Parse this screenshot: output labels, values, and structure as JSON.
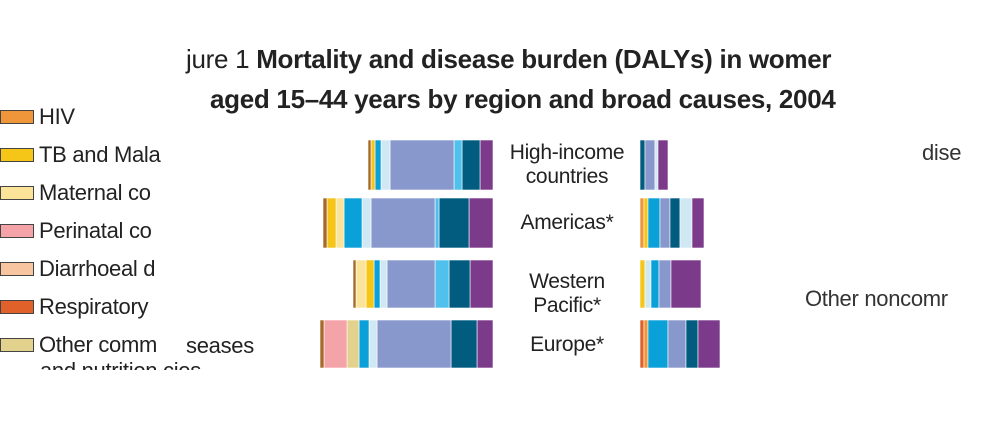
{
  "figure": {
    "title_prefix": "jure 1",
    "title_line1": "Mortality and disease burden (DALYs) in womer",
    "title_line2": "aged 15–44 years by region and broad causes, 2004"
  },
  "legend": [
    {
      "label": "HIV",
      "color": "#f0963a"
    },
    {
      "label": "TB and Mala",
      "color": "#f5c518"
    },
    {
      "label": "Maternal co",
      "color": "#fbe39a"
    },
    {
      "label": "Perinatal co",
      "color": "#f4a3a8"
    },
    {
      "label": "Diarrhoeal d",
      "color": "#f7c6a0"
    },
    {
      "label": "Respiratory",
      "color": "#e0622a"
    },
    {
      "label": "Other comm",
      "color": "#e3d18e"
    }
  ],
  "legend_fragments": {
    "other_comm_tail": "seases",
    "cut_line": "and nutrition   cies"
  },
  "side_text": {
    "right_top": "dise",
    "right_middle": "Other noncomr"
  },
  "chart_data": {
    "type": "bar",
    "orientation": "horizontal",
    "layout": "population-pyramid",
    "categories": [
      "High-income\ncountries",
      "Americas*",
      "Western\nPacific*",
      "Europe*"
    ],
    "left_side_segments": [
      [
        {
          "color": "#7b3a8a",
          "value": 13
        },
        {
          "color": "#015c80",
          "value": 18
        },
        {
          "color": "#50c0ec",
          "value": 8
        },
        {
          "color": "#8898cc",
          "value": 64
        },
        {
          "color": "#cfe8f4",
          "value": 9
        },
        {
          "color": "#0aa0d8",
          "value": 6
        },
        {
          "color": "#f5c518",
          "value": 4
        },
        {
          "color": "#a66a2a",
          "value": 3
        }
      ],
      [
        {
          "color": "#7b3a8a",
          "value": 24
        },
        {
          "color": "#015c80",
          "value": 30
        },
        {
          "color": "#50c0ec",
          "value": 4
        },
        {
          "color": "#8898cc",
          "value": 64
        },
        {
          "color": "#cfe8f4",
          "value": 9
        },
        {
          "color": "#0aa0d8",
          "value": 18
        },
        {
          "color": "#fbe39a",
          "value": 8
        },
        {
          "color": "#f5c518",
          "value": 9
        },
        {
          "color": "#a66a2a",
          "value": 4
        }
      ],
      [
        {
          "color": "#7b3a8a",
          "value": 23
        },
        {
          "color": "#015c80",
          "value": 21
        },
        {
          "color": "#50c0ec",
          "value": 14
        },
        {
          "color": "#8898cc",
          "value": 48
        },
        {
          "color": "#cfe8f4",
          "value": 7
        },
        {
          "color": "#0aa0d8",
          "value": 6
        },
        {
          "color": "#f5c518",
          "value": 8
        },
        {
          "color": "#fbe39a",
          "value": 10
        },
        {
          "color": "#a66a2a",
          "value": 3
        }
      ],
      [
        {
          "color": "#7b3a8a",
          "value": 16
        },
        {
          "color": "#015c80",
          "value": 26
        },
        {
          "color": "#8898cc",
          "value": 74
        },
        {
          "color": "#cfe8f4",
          "value": 8
        },
        {
          "color": "#0aa0d8",
          "value": 10
        },
        {
          "color": "#e3d18e",
          "value": 12
        },
        {
          "color": "#f4a3a8",
          "value": 23
        },
        {
          "color": "#a66a2a",
          "value": 4
        }
      ]
    ],
    "right_side_segments": [
      [
        {
          "color": "#015c80",
          "value": 5
        },
        {
          "color": "#8898cc",
          "value": 10
        },
        {
          "color": "#cfe8f4",
          "value": 3
        },
        {
          "color": "#7b3a8a",
          "value": 10
        }
      ],
      [
        {
          "color": "#f0963a",
          "value": 4
        },
        {
          "color": "#f5c518",
          "value": 4
        },
        {
          "color": "#0aa0d8",
          "value": 12
        },
        {
          "color": "#8898cc",
          "value": 10
        },
        {
          "color": "#015c80",
          "value": 10
        },
        {
          "color": "#cfe8f4",
          "value": 12
        },
        {
          "color": "#7b3a8a",
          "value": 12
        }
      ],
      [
        {
          "color": "#f5c518",
          "value": 5
        },
        {
          "color": "#cfe8f4",
          "value": 6
        },
        {
          "color": "#0aa0d8",
          "value": 8
        },
        {
          "color": "#8898cc",
          "value": 12
        },
        {
          "color": "#7b3a8a",
          "value": 30
        }
      ],
      [
        {
          "color": "#e0622a",
          "value": 4
        },
        {
          "color": "#f0963a",
          "value": 4
        },
        {
          "color": "#0aa0d8",
          "value": 20
        },
        {
          "color": "#8898cc",
          "value": 18
        },
        {
          "color": "#015c80",
          "value": 12
        },
        {
          "color": "#7b3a8a",
          "value": 22
        }
      ]
    ],
    "title": "Mortality and disease burden (DALYs) in womer aged 15–44 years by region and broad causes, 2004",
    "xlabel": "",
    "ylabel": "",
    "legend_position": "left"
  }
}
